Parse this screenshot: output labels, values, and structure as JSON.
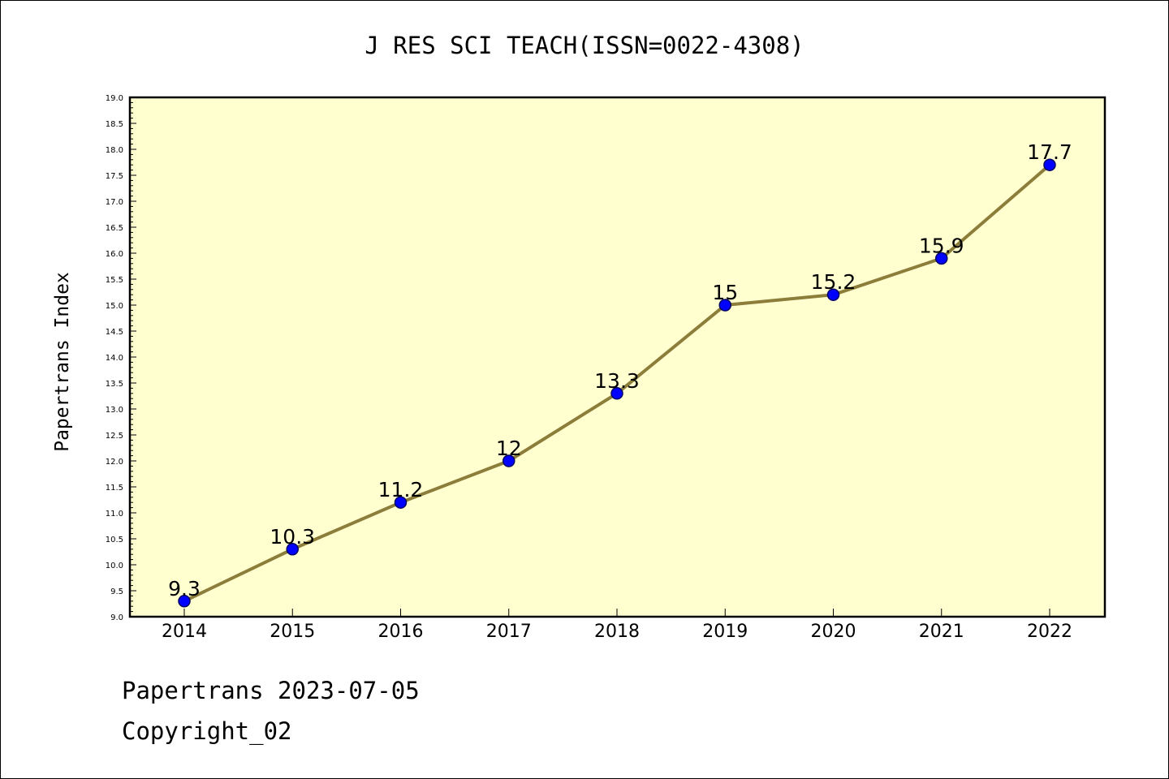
{
  "chart_data": {
    "type": "line",
    "title": "J RES SCI TEACH(ISSN=0022-4308)",
    "ylabel": "Papertrans Index",
    "xlabel": "",
    "categories": [
      "2014",
      "2015",
      "2016",
      "2017",
      "2018",
      "2019",
      "2020",
      "2021",
      "2022"
    ],
    "values": [
      9.3,
      10.3,
      11.2,
      12,
      13.3,
      15,
      15.2,
      15.9,
      17.7
    ],
    "data_labels": [
      "9.3",
      "10.3",
      "11.2",
      "12",
      "13.3",
      "15",
      "15.2",
      "15.9",
      "17.7"
    ],
    "ylim": [
      9.0,
      19.0
    ],
    "ytick_step": 0.5,
    "grid": false,
    "colors": {
      "plot_background": "#ffffd0",
      "line": "#8c7d3a",
      "marker": "#0000ff",
      "marker_edge": "#000066"
    }
  },
  "footer": {
    "line1": "Papertrans 2023-07-05",
    "line2": "Copyright_02"
  }
}
